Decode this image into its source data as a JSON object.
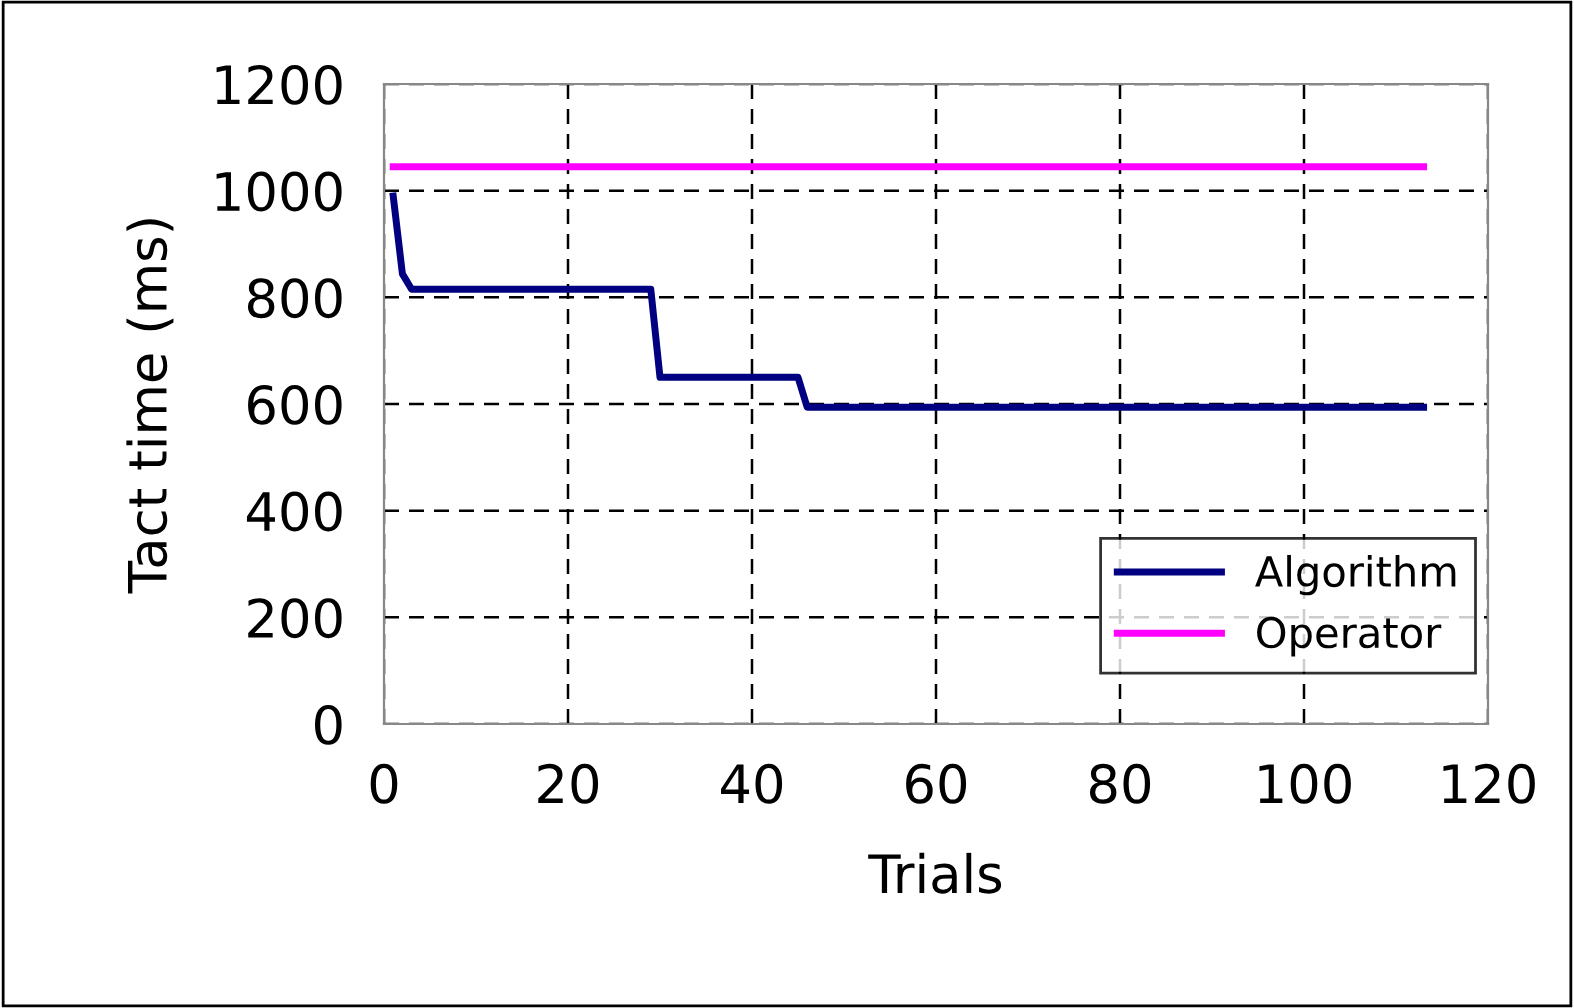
{
  "chart_data": {
    "type": "line",
    "xlabel": "Trials",
    "ylabel": "Tact time (ms)",
    "series": [
      {
        "name": "Algorithm",
        "color": "#000080",
        "x": [
          1,
          2,
          3,
          29,
          30,
          45,
          46,
          113
        ],
        "values": [
          990,
          844,
          815,
          815,
          650,
          650,
          594,
          594
        ]
      },
      {
        "name": "Operator",
        "color": "#ff00ff",
        "x": [
          1,
          113
        ],
        "values": [
          1045,
          1045
        ]
      }
    ],
    "xlim": [
      0,
      120
    ],
    "xticks": [
      0,
      20,
      40,
      60,
      80,
      100,
      120
    ],
    "ylim": [
      0,
      1200
    ],
    "yticks": [
      0,
      200,
      400,
      600,
      800,
      1000,
      1200
    ],
    "grid": true,
    "legend": "lower right",
    "marker": "none",
    "line_style": "solid"
  }
}
